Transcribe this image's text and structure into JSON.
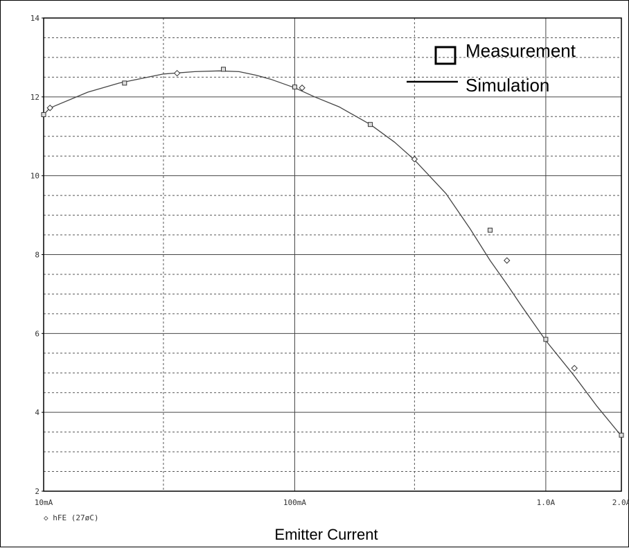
{
  "chart_data": {
    "type": "line",
    "xscale": "log",
    "xlim": [
      0.01,
      2.0
    ],
    "ylim": [
      2,
      14
    ],
    "xlabel": "Emitter Current",
    "ylabel": "",
    "grid": true,
    "x_ticks": [
      {
        "value": 0.01,
        "label": "10mA"
      },
      {
        "value": 0.1,
        "label": "100mA"
      },
      {
        "value": 1.0,
        "label": "1.0A"
      },
      {
        "value": 2.0,
        "label": "2.0A"
      }
    ],
    "y_ticks": [
      {
        "value": 2,
        "label": "2"
      },
      {
        "value": 4,
        "label": "4"
      },
      {
        "value": 6,
        "label": "6"
      },
      {
        "value": 8,
        "label": "8"
      },
      {
        "value": 10,
        "label": "10"
      },
      {
        "value": 12,
        "label": "12"
      },
      {
        "value": 14,
        "label": "14"
      }
    ],
    "legend_position": "top-right",
    "legend": [
      {
        "label": "Measurement",
        "marker": "square"
      },
      {
        "label": "Simulation",
        "marker": "line"
      }
    ],
    "trace_legend": {
      "label": "hFE (27øC)",
      "marker": "◇"
    },
    "series": [
      {
        "name": "Simulation",
        "style": "line",
        "x": [
          0.01,
          0.0106,
          0.015,
          0.02,
          0.03,
          0.04,
          0.05,
          0.06,
          0.07,
          0.08,
          0.1,
          0.12,
          0.15,
          0.2,
          0.25,
          0.3,
          0.4,
          0.5,
          0.6,
          0.7,
          0.8,
          1.0,
          1.3,
          1.6,
          2.0
        ],
        "y": [
          11.55,
          11.72,
          12.12,
          12.35,
          12.58,
          12.64,
          12.66,
          12.64,
          12.55,
          12.45,
          12.23,
          12.0,
          11.75,
          11.3,
          10.85,
          10.4,
          9.55,
          8.65,
          7.85,
          7.25,
          6.7,
          5.82,
          4.92,
          4.15,
          3.4
        ]
      },
      {
        "name": "hFE (27øC)",
        "style": "marker",
        "marker": "diamond",
        "x": [
          0.0106,
          0.034,
          0.107,
          0.3,
          0.7,
          1.3
        ],
        "y": [
          11.72,
          12.6,
          12.23,
          10.42,
          7.85,
          5.12
        ]
      },
      {
        "name": "Measurement",
        "style": "marker",
        "marker": "square",
        "x": [
          0.01,
          0.021,
          0.052,
          0.1,
          0.2,
          0.6,
          1.0,
          2.0
        ],
        "y": [
          11.55,
          12.35,
          12.7,
          12.25,
          11.3,
          8.62,
          5.85,
          3.42
        ]
      }
    ]
  }
}
